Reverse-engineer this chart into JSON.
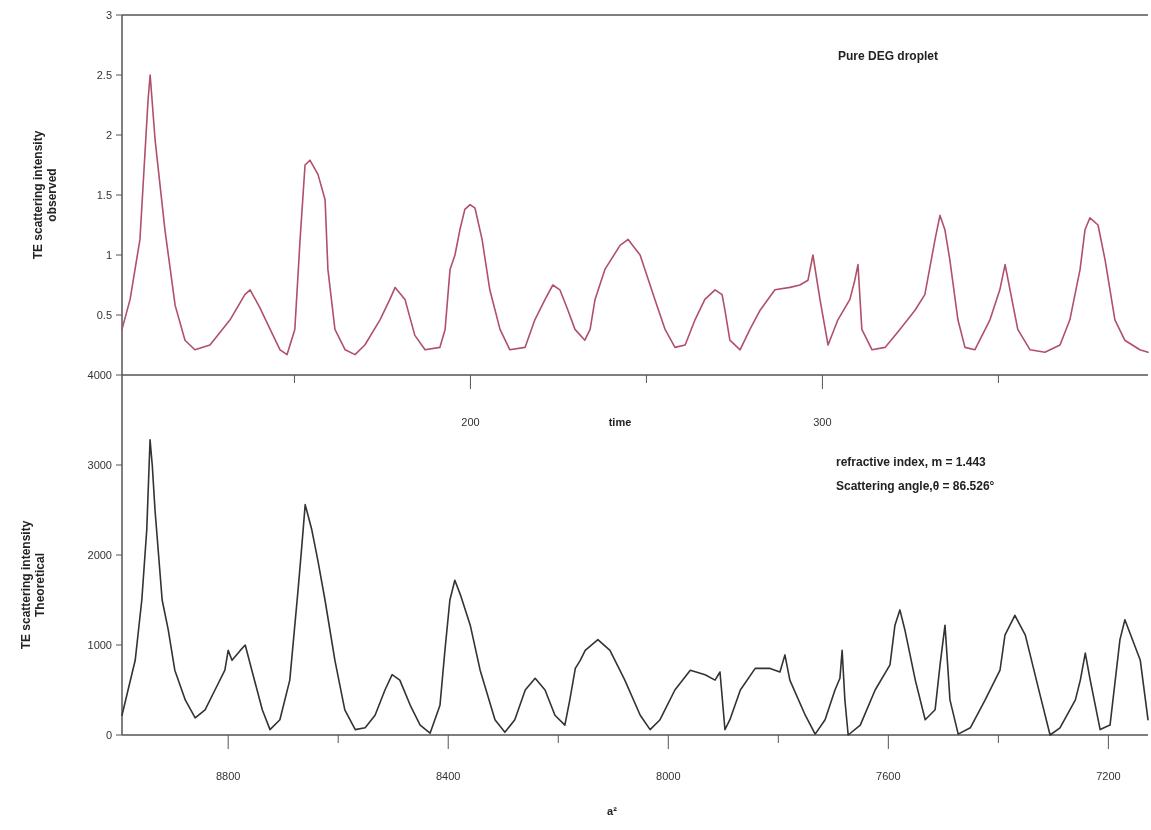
{
  "chart_data": [
    {
      "type": "line",
      "ylabel": "TE scattering intensity\nobserved",
      "xlabel": "time",
      "annotations": [
        "Pure DEG droplet"
      ],
      "xlim": [
        101,
        392.5
      ],
      "xticks": [
        {
          "value": 150,
          "label": null
        },
        200,
        {
          "value": 250,
          "label": null
        },
        300,
        {
          "value": 350,
          "label": null
        }
      ],
      "ylim": [
        0,
        3
      ],
      "yticks": [
        0.5,
        1,
        1.5,
        2,
        2.5,
        3
      ],
      "series": [
        {
          "color": "#b0506a",
          "x": [
            101,
            103.3,
            106.1,
            108.4,
            109,
            110.4,
            113.2,
            116.1,
            118.9,
            121.7,
            126,
            131.7,
            135.9,
            137.4,
            140.2,
            143.1,
            145.9,
            147.9,
            150.1,
            151.6,
            153,
            154.4,
            156.7,
            158.7,
            159.5,
            161.5,
            164.4,
            167.2,
            170,
            174.3,
            177.1,
            178.6,
            181.4,
            184.2,
            187.1,
            191.3,
            192.8,
            194.2,
            195.6,
            197,
            198.4,
            199.9,
            201.3,
            203.3,
            205.5,
            208.4,
            211.2,
            215.5,
            218.3,
            221.2,
            223.4,
            225.4,
            227.7,
            229.7,
            232.5,
            234,
            235.4,
            238.2,
            242.5,
            244.8,
            248.2,
            252.4,
            255.3,
            258.1,
            261,
            263.8,
            266.6,
            269.5,
            271.5,
            272.3,
            273.7,
            276.6,
            279.4,
            282.3,
            286.5,
            290.8,
            293.6,
            295.9,
            297.3,
            299.3,
            301.6,
            304.4,
            307.8,
            309.2,
            310.1,
            311.2,
            314.1,
            317.8,
            322,
            326.3,
            329.1,
            332,
            333.4,
            334.8,
            336.2,
            338.5,
            340.5,
            343.3,
            347.6,
            350.4,
            351.9,
            353.3,
            355.5,
            359,
            363.2,
            367.5,
            370.3,
            373.2,
            374.6,
            376,
            378.3,
            380.3,
            383.1,
            385.9,
            390.2,
            392.5
          ],
          "values": [
            0.38,
            0.63,
            1.13,
            2.29,
            2.5,
            1.96,
            1.21,
            0.58,
            0.29,
            0.21,
            0.25,
            0.46,
            0.67,
            0.71,
            0.56,
            0.38,
            0.21,
            0.17,
            0.38,
            1.13,
            1.75,
            1.79,
            1.67,
            1.46,
            0.88,
            0.38,
            0.21,
            0.17,
            0.25,
            0.46,
            0.63,
            0.73,
            0.63,
            0.33,
            0.21,
            0.23,
            0.38,
            0.88,
            1.0,
            1.21,
            1.38,
            1.42,
            1.39,
            1.13,
            0.71,
            0.38,
            0.21,
            0.23,
            0.46,
            0.63,
            0.75,
            0.71,
            0.54,
            0.38,
            0.29,
            0.38,
            0.63,
            0.88,
            1.08,
            1.13,
            1.0,
            0.63,
            0.38,
            0.23,
            0.25,
            0.46,
            0.63,
            0.71,
            0.67,
            0.54,
            0.29,
            0.21,
            0.38,
            0.54,
            0.71,
            0.73,
            0.75,
            0.79,
            1.0,
            0.63,
            0.25,
            0.46,
            0.63,
            0.79,
            0.92,
            0.38,
            0.21,
            0.23,
            0.38,
            0.54,
            0.67,
            1.13,
            1.33,
            1.21,
            0.96,
            0.46,
            0.23,
            0.21,
            0.46,
            0.71,
            0.92,
            0.71,
            0.38,
            0.21,
            0.19,
            0.25,
            0.46,
            0.88,
            1.21,
            1.31,
            1.25,
            0.96,
            0.46,
            0.29,
            0.21,
            0.19
          ]
        }
      ]
    },
    {
      "type": "line",
      "ylabel": "TE scattering intensity\nTheoretical",
      "xlabel": "a²",
      "annotations": [
        "refractive index, m = 1.443",
        "Scattering angle,θ = 86.526°"
      ],
      "xlim": [
        8993,
        7128
      ],
      "xticks": [
        8800,
        {
          "value": 8600,
          "label": null
        },
        8400,
        {
          "value": 8200,
          "label": null
        },
        8000,
        {
          "value": 7800,
          "label": null
        },
        7600,
        {
          "value": 7400,
          "label": null
        },
        7200
      ],
      "ylim": [
        0,
        4000
      ],
      "yticks": [
        0,
        1000,
        2000,
        3000,
        4000
      ],
      "series": [
        {
          "color": "#333333",
          "x": [
            8993,
            8982,
            8969,
            8957,
            8948,
            8942,
            8938,
            8933,
            8920,
            8909,
            8897,
            8878,
            8860,
            8842,
            8824,
            8806,
            8800,
            8793,
            8778,
            8769,
            8757,
            8738,
            8724,
            8706,
            8688,
            8673,
            8666,
            8660,
            8648,
            8637,
            8624,
            8606,
            8588,
            8569,
            8551,
            8533,
            8515,
            8502,
            8488,
            8469,
            8451,
            8433,
            8415,
            8406,
            8397,
            8388,
            8378,
            8360,
            8342,
            8315,
            8297,
            8279,
            8260,
            8242,
            8224,
            8206,
            8188,
            8179,
            8169,
            8160,
            8151,
            8128,
            8106,
            8079,
            8051,
            8033,
            8015,
            7988,
            7960,
            7933,
            7915,
            7906,
            7897,
            7888,
            7869,
            7842,
            7815,
            7797,
            7788,
            7779,
            7751,
            7733,
            7715,
            7697,
            7688,
            7684,
            7679,
            7673,
            7651,
            7624,
            7597,
            7588,
            7579,
            7570,
            7551,
            7533,
            7515,
            7506,
            7497,
            7488,
            7473,
            7451,
            7424,
            7397,
            7388,
            7370,
            7351,
            7324,
            7306,
            7288,
            7260,
            7251,
            7242,
            7233,
            7215,
            7197,
            7179,
            7170,
            7142,
            7128
          ],
          "values": [
            220,
            500,
            830,
            1500,
            2280,
            3280,
            3000,
            2500,
            1500,
            1170,
            720,
            390,
            190,
            280,
            500,
            720,
            940,
            830,
            940,
            1000,
            720,
            280,
            60,
            170,
            610,
            1610,
            2110,
            2560,
            2280,
            1940,
            1500,
            830,
            280,
            60,
            80,
            220,
            500,
            670,
            610,
            330,
            110,
            20,
            330,
            940,
            1500,
            1720,
            1560,
            1220,
            720,
            170,
            30,
            170,
            500,
            630,
            500,
            220,
            110,
            390,
            740,
            830,
            940,
            1060,
            940,
            610,
            220,
            60,
            170,
            500,
            720,
            670,
            610,
            700,
            60,
            170,
            500,
            740,
            740,
            700,
            890,
            610,
            220,
            10,
            170,
            500,
            630,
            940,
            390,
            0,
            110,
            500,
            780,
            1220,
            1390,
            1170,
            610,
            170,
            280,
            780,
            1220,
            390,
            10,
            80,
            390,
            720,
            1110,
            1330,
            1110,
            440,
            0,
            80,
            390,
            610,
            910,
            610,
            60,
            110,
            1060,
            1280,
            830,
            170
          ]
        }
      ]
    }
  ]
}
